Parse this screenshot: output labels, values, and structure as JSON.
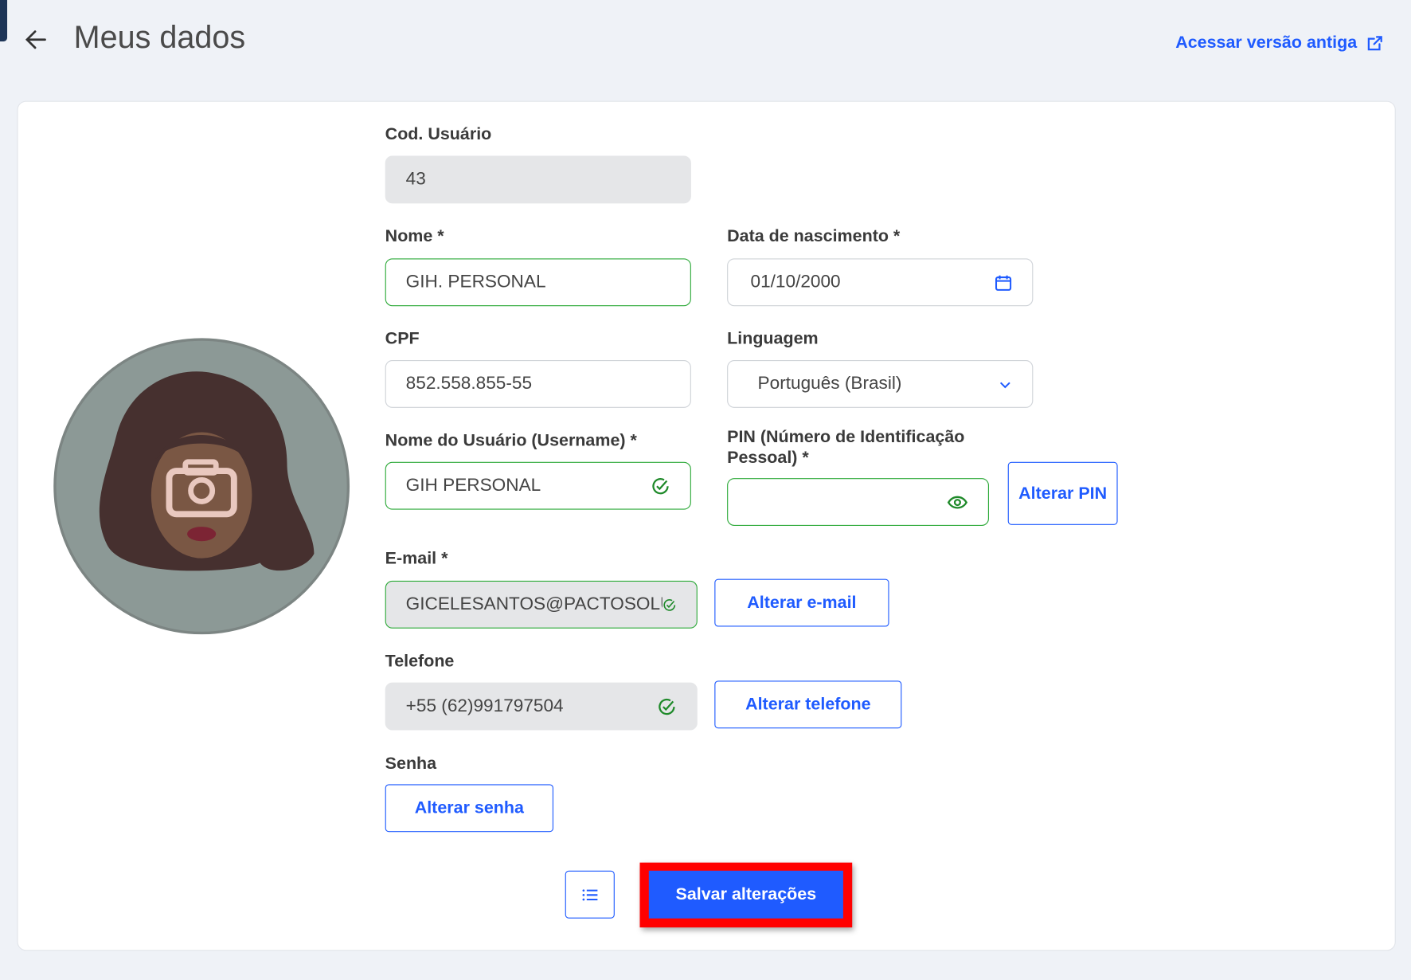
{
  "header": {
    "title": "Meus dados",
    "old_version_link": "Acessar versão antiga"
  },
  "form": {
    "cod_usuario": {
      "label": "Cod. Usuário",
      "value": "43"
    },
    "nome": {
      "label": "Nome *",
      "value": "GIH. PERSONAL"
    },
    "data_nascimento": {
      "label": "Data de nascimento *",
      "value": "01/10/2000"
    },
    "cpf": {
      "label": "CPF",
      "value": "852.558.855-55"
    },
    "linguagem": {
      "label": "Linguagem",
      "value": "Português (Brasil)"
    },
    "username": {
      "label": "Nome do Usuário (Username) *",
      "value": "GIH PERSONAL"
    },
    "pin": {
      "label": "PIN (Número de Identificação Pessoal) *",
      "value": "",
      "button": "Alterar PIN"
    },
    "email": {
      "label": "E-mail *",
      "value": "GICELESANTOS@PACTOSOLUCOES",
      "button": "Alterar e-mail"
    },
    "telefone": {
      "label": "Telefone",
      "value": "+55 (62)991797504",
      "button": "Alterar telefone"
    },
    "senha": {
      "label": "Senha",
      "button": "Alterar senha"
    }
  },
  "actions": {
    "save": "Salvar alterações"
  },
  "colors": {
    "accent": "#1f5bff",
    "valid": "#2eaa3a",
    "highlight": "#ff0000"
  }
}
